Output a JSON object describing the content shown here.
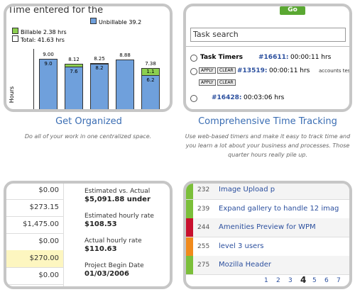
{
  "features": [
    {
      "title": "Get Organized",
      "description": "Do all of your work in one centralized space."
    },
    {
      "title": "Comprehensive Time Tracking",
      "description": "Use web-based timers and make it easy to track time and you learn a lot about your business and processes. Those quarter hours really pile up."
    }
  ],
  "organize": {
    "heading": "Time entered for the",
    "legend": [
      "Unbillable 39.2",
      "Billable 2.38 hrs",
      "Total: 41.63 hrs"
    ],
    "axis_label": "Hours",
    "bars": [
      {
        "total": "9.00",
        "unbillable": "9.0"
      },
      {
        "total": "8.12",
        "unbillable": "7.6"
      },
      {
        "total": "8.25",
        "unbillable": "8.2"
      },
      {
        "total": "8.88",
        "unbillable": null
      },
      {
        "total": "7.38",
        "billable": "1.1",
        "unbillable": "6.2"
      }
    ]
  },
  "tracking": {
    "button": "Go",
    "search_placeholder": "Task search",
    "heading": "Task Timers",
    "apply": "APPLY",
    "clear": "CLEAR",
    "timers": [
      {
        "id": "#16611:",
        "time": "00:00:11 hrs"
      },
      {
        "id": "#13519:",
        "time": "00:00:11 hrs",
        "note": "accounts testin"
      },
      {
        "id": "#16428:",
        "time": "00:03:06 hrs"
      }
    ]
  },
  "budget": {
    "amounts": [
      "$0.00",
      "$273.15",
      "$1,475.00",
      "$0.00",
      "$270.00",
      "$0.00"
    ],
    "stats": [
      {
        "label": "Estimated vs. Actual",
        "value": "$5,091.88 under"
      },
      {
        "label": "Estimated hourly rate",
        "value": "$108.53"
      },
      {
        "label": "Actual hourly rate",
        "value": "$110.63"
      },
      {
        "label": "Project Begin Date",
        "value": "01/03/2006"
      }
    ]
  },
  "tasks": {
    "rows": [
      {
        "id": "232",
        "name": "Image Upload p",
        "color": "#7bbf3a"
      },
      {
        "id": "239",
        "name": "Expand gallery to handle 12 imag",
        "color": "#7bbf3a"
      },
      {
        "id": "244",
        "name": "Amenities Preview for WPM",
        "color": "#c8102e"
      },
      {
        "id": "255",
        "name": "level 3 users",
        "color": "#f08a1c"
      },
      {
        "id": "275",
        "name": "Mozilla Header",
        "color": "#7bbf3a"
      }
    ],
    "pages": [
      "1",
      "2",
      "3",
      "4",
      "5",
      "6",
      "7"
    ],
    "current_page": "4"
  }
}
